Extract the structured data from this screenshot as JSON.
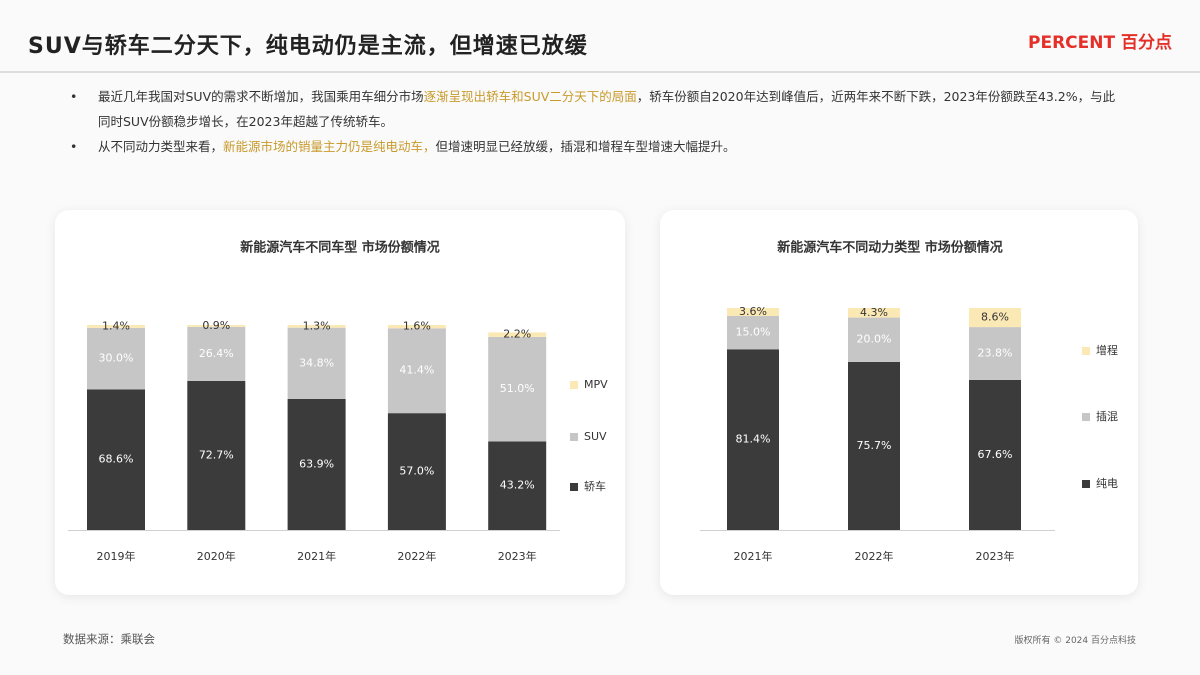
{
  "header": {
    "title": "SUV与轿车二分天下，纯电动仍是主流，但增速已放缓",
    "logo": "PERCENT 百分点"
  },
  "bullets": [
    {
      "before": "最近几年我国对SUV的需求不断增加，我国乘用车细分市场",
      "highlight": "逐渐呈现出轿车和SUV二分天下的局面",
      "after": "，轿车份额自2020年达到峰值后，近两年来不断下跌，2023年份额跌至43.2%，与此同时SUV份额稳步增长，在2023年超越了传统轿车。"
    },
    {
      "before": "从不同动力类型来看，",
      "highlight": "新能源市场的销量主力仍是纯电动车，",
      "after": "但增速明显已经放缓，插混和增程车型增速大幅提升。"
    }
  ],
  "footer": {
    "source": "数据来源：乘联会",
    "copyright": "版权所有 © 2024 百分点科技"
  },
  "chart_data": [
    {
      "type": "stacked-bar",
      "title": "新能源汽车不同车型 市场份额情况",
      "legend": "right",
      "categories": [
        "2019年",
        "2020年",
        "2021年",
        "2022年",
        "2023年"
      ],
      "ylim": [
        0,
        100
      ],
      "series": [
        {
          "name": "轿车",
          "color": "#3b3b3b",
          "values": [
            68.6,
            72.7,
            63.9,
            57.0,
            43.2
          ],
          "value_labels": [
            "68.6%",
            "72.7%",
            "63.9%",
            "57.0%",
            "43.2%"
          ]
        },
        {
          "name": "SUV",
          "color": "#c6c6c6",
          "values": [
            30.0,
            26.4,
            34.8,
            41.4,
            51.0
          ],
          "value_labels": [
            "30.0%",
            "26.4%",
            "34.8%",
            "41.4%",
            "51.0%"
          ]
        },
        {
          "name": "MPV",
          "color": "#fbe9b5",
          "values": [
            1.4,
            0.9,
            1.3,
            1.6,
            2.2
          ],
          "value_labels": [
            "1.4%",
            "0.9%",
            "1.3%",
            "1.6%",
            "2.2%"
          ]
        }
      ]
    },
    {
      "type": "stacked-bar",
      "title": "新能源汽车不同动力类型 市场份额情况",
      "legend": "right",
      "categories": [
        "2021年",
        "2022年",
        "2023年"
      ],
      "ylim": [
        0,
        100
      ],
      "series": [
        {
          "name": "纯电",
          "color": "#3b3b3b",
          "values": [
            81.4,
            75.7,
            67.6
          ],
          "value_labels": [
            "81.4%",
            "75.7%",
            "67.6%"
          ]
        },
        {
          "name": "插混",
          "color": "#c6c6c6",
          "values": [
            15.0,
            20.0,
            23.8
          ],
          "value_labels": [
            "15.0%",
            "20.0%",
            "23.8%"
          ]
        },
        {
          "name": "增程",
          "color": "#fbe9b5",
          "values": [
            3.6,
            4.3,
            8.6
          ],
          "value_labels": [
            "3.6%",
            "4.3%",
            "8.6%"
          ]
        }
      ]
    }
  ]
}
